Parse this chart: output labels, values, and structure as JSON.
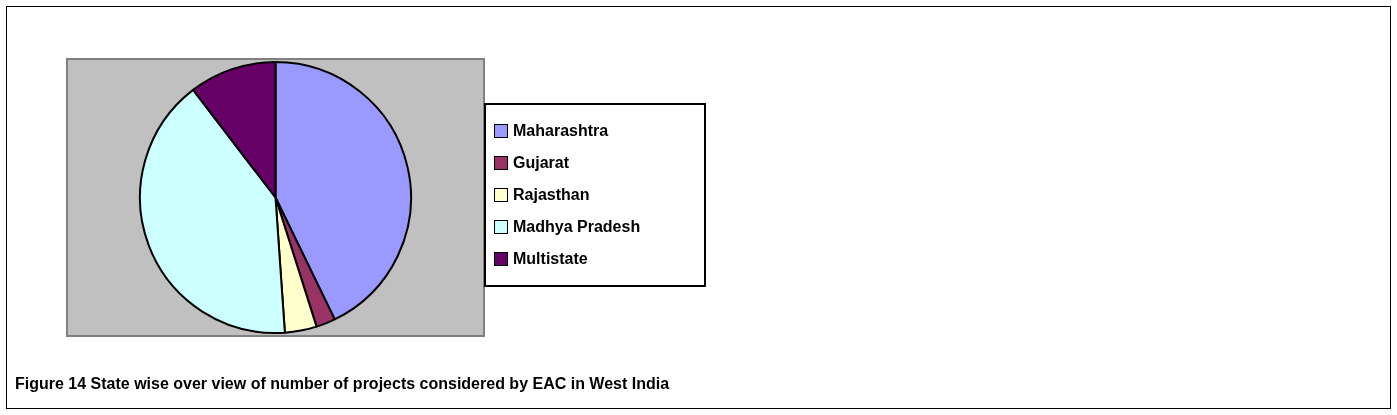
{
  "chart_data": {
    "type": "pie",
    "title": "Figure 14 State wise over view of number of projects considered by EAC in West India",
    "categories": [
      "Maharashtra",
      "Gujarat",
      "Rajasthan",
      "Madhya Pradesh",
      "Multistate"
    ],
    "values": [
      42.8,
      2.3,
      3.8,
      40.7,
      10.4
    ],
    "colors": [
      "#9999ff",
      "#993366",
      "#ffffcc",
      "#ccffff",
      "#660066"
    ],
    "legend": "right"
  }
}
